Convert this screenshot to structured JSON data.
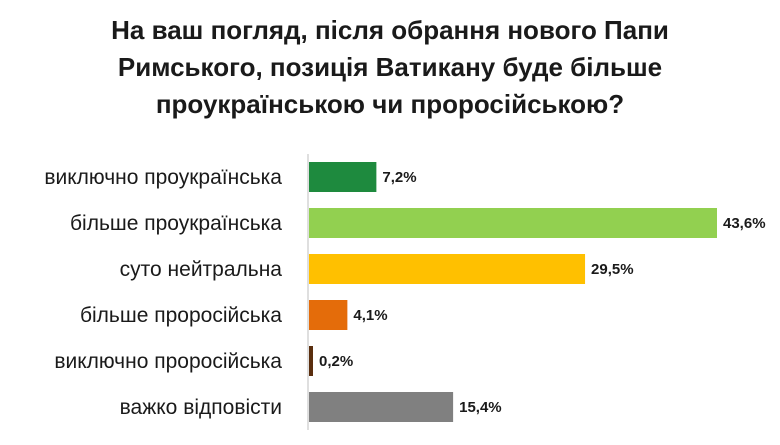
{
  "chart_data": {
    "type": "bar",
    "orientation": "horizontal",
    "title": "На ваш погляд, після обрання нового Папи Римського, позиція Ватикану буде більше проукраїнською чи проросійською?",
    "categories": [
      "виключно проукраїнська",
      "більше проукраїнська",
      "суто нейтральна",
      "більше проросійська",
      "виключно проросійська",
      "важко відповісти"
    ],
    "values": [
      7.2,
      43.6,
      29.5,
      4.1,
      0.2,
      15.4
    ],
    "value_labels": [
      "7,2%",
      "43,6%",
      "29,5%",
      "4,1%",
      "0,2%",
      "15,4%"
    ],
    "colors": [
      "#1e8a3e",
      "#92d050",
      "#ffc000",
      "#e46c0a",
      "#5a2e0e",
      "#808080"
    ],
    "xlim": [
      0,
      43.6
    ],
    "grid": false,
    "legend": "none"
  }
}
